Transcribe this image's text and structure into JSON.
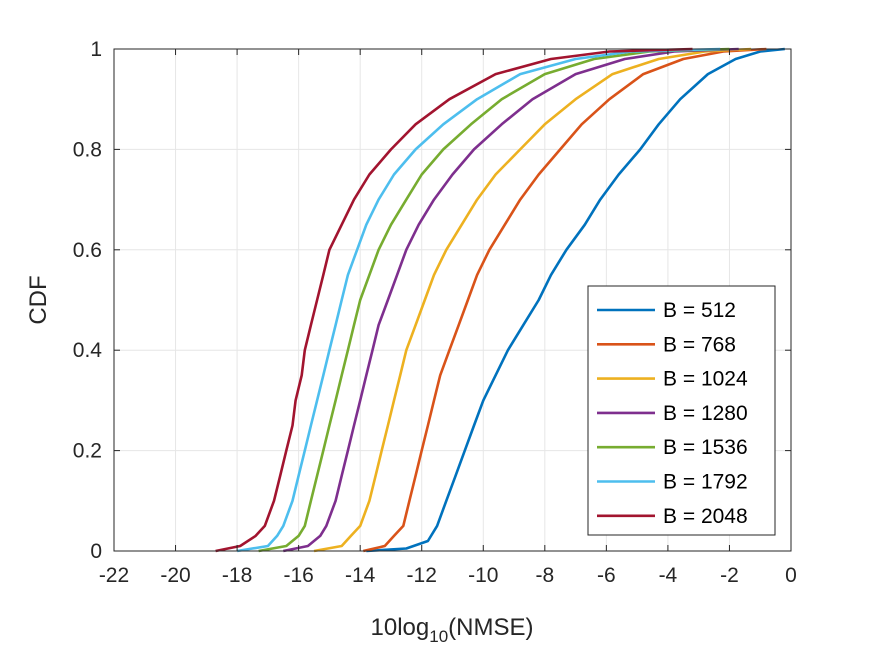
{
  "chart_data": {
    "type": "line",
    "title": "",
    "xlabel": {
      "prefix": "10log",
      "sub": "10",
      "suffix": "(NMSE)"
    },
    "ylabel": "CDF",
    "xlim": [
      -22,
      0
    ],
    "ylim": [
      0,
      1
    ],
    "xticks": [
      -22,
      -20,
      -18,
      -16,
      -14,
      -12,
      -10,
      -8,
      -6,
      -4,
      -2,
      0
    ],
    "yticks": [
      0,
      0.2,
      0.4,
      0.6,
      0.8,
      1
    ],
    "grid": true,
    "legend_position": "bottom-right",
    "series": [
      {
        "name": "B = 512",
        "color": "#0072BD",
        "points": [
          [
            -13.8,
            0
          ],
          [
            -12.5,
            0.005
          ],
          [
            -11.8,
            0.02
          ],
          [
            -11.5,
            0.05
          ],
          [
            -11.2,
            0.1
          ],
          [
            -10.9,
            0.15
          ],
          [
            -10.6,
            0.2
          ],
          [
            -10.3,
            0.25
          ],
          [
            -10,
            0.3
          ],
          [
            -9.6,
            0.35
          ],
          [
            -9.2,
            0.4
          ],
          [
            -8.7,
            0.45
          ],
          [
            -8.2,
            0.5
          ],
          [
            -7.8,
            0.55
          ],
          [
            -7.3,
            0.6
          ],
          [
            -6.7,
            0.65
          ],
          [
            -6.2,
            0.7
          ],
          [
            -5.6,
            0.75
          ],
          [
            -4.9,
            0.8
          ],
          [
            -4.3,
            0.85
          ],
          [
            -3.6,
            0.9
          ],
          [
            -2.7,
            0.95
          ],
          [
            -1.8,
            0.98
          ],
          [
            -1,
            0.995
          ],
          [
            -0.2,
            1
          ]
        ]
      },
      {
        "name": "B = 768",
        "color": "#D95319",
        "points": [
          [
            -13.9,
            0
          ],
          [
            -13.2,
            0.01
          ],
          [
            -12.9,
            0.03
          ],
          [
            -12.6,
            0.05
          ],
          [
            -12.4,
            0.1
          ],
          [
            -12.2,
            0.15
          ],
          [
            -12,
            0.2
          ],
          [
            -11.8,
            0.25
          ],
          [
            -11.6,
            0.3
          ],
          [
            -11.4,
            0.35
          ],
          [
            -11.1,
            0.4
          ],
          [
            -10.8,
            0.45
          ],
          [
            -10.5,
            0.5
          ],
          [
            -10.2,
            0.55
          ],
          [
            -9.8,
            0.6
          ],
          [
            -9.3,
            0.65
          ],
          [
            -8.8,
            0.7
          ],
          [
            -8.2,
            0.75
          ],
          [
            -7.5,
            0.8
          ],
          [
            -6.8,
            0.85
          ],
          [
            -5.9,
            0.9
          ],
          [
            -4.8,
            0.95
          ],
          [
            -3.5,
            0.98
          ],
          [
            -2.2,
            0.995
          ],
          [
            -0.8,
            1
          ]
        ]
      },
      {
        "name": "B = 1024",
        "color": "#EDB120",
        "points": [
          [
            -15.5,
            0
          ],
          [
            -14.6,
            0.01
          ],
          [
            -14.3,
            0.03
          ],
          [
            -14,
            0.05
          ],
          [
            -13.7,
            0.1
          ],
          [
            -13.5,
            0.15
          ],
          [
            -13.3,
            0.2
          ],
          [
            -13.1,
            0.25
          ],
          [
            -12.9,
            0.3
          ],
          [
            -12.7,
            0.35
          ],
          [
            -12.5,
            0.4
          ],
          [
            -12.2,
            0.45
          ],
          [
            -11.9,
            0.5
          ],
          [
            -11.6,
            0.55
          ],
          [
            -11.2,
            0.6
          ],
          [
            -10.7,
            0.65
          ],
          [
            -10.2,
            0.7
          ],
          [
            -9.6,
            0.75
          ],
          [
            -8.8,
            0.8
          ],
          [
            -8,
            0.85
          ],
          [
            -7,
            0.9
          ],
          [
            -5.8,
            0.95
          ],
          [
            -4.3,
            0.98
          ],
          [
            -2.8,
            0.995
          ],
          [
            -1.3,
            1
          ]
        ]
      },
      {
        "name": "B = 1280",
        "color": "#7E2F8E",
        "points": [
          [
            -16.5,
            0
          ],
          [
            -15.7,
            0.01
          ],
          [
            -15.3,
            0.03
          ],
          [
            -15.1,
            0.05
          ],
          [
            -14.8,
            0.1
          ],
          [
            -14.6,
            0.15
          ],
          [
            -14.4,
            0.2
          ],
          [
            -14.2,
            0.25
          ],
          [
            -14,
            0.3
          ],
          [
            -13.8,
            0.35
          ],
          [
            -13.6,
            0.4
          ],
          [
            -13.4,
            0.45
          ],
          [
            -13.1,
            0.5
          ],
          [
            -12.8,
            0.55
          ],
          [
            -12.5,
            0.6
          ],
          [
            -12.1,
            0.65
          ],
          [
            -11.6,
            0.7
          ],
          [
            -11,
            0.75
          ],
          [
            -10.3,
            0.8
          ],
          [
            -9.4,
            0.85
          ],
          [
            -8.4,
            0.9
          ],
          [
            -7,
            0.95
          ],
          [
            -5.4,
            0.98
          ],
          [
            -3.8,
            0.995
          ],
          [
            -1.7,
            1
          ]
        ]
      },
      {
        "name": "B = 1536",
        "color": "#77AC30",
        "points": [
          [
            -17.3,
            0
          ],
          [
            -16.4,
            0.01
          ],
          [
            -16,
            0.03
          ],
          [
            -15.8,
            0.05
          ],
          [
            -15.6,
            0.1
          ],
          [
            -15.4,
            0.15
          ],
          [
            -15.2,
            0.2
          ],
          [
            -15,
            0.25
          ],
          [
            -14.8,
            0.3
          ],
          [
            -14.6,
            0.35
          ],
          [
            -14.4,
            0.4
          ],
          [
            -14.2,
            0.45
          ],
          [
            -14,
            0.5
          ],
          [
            -13.7,
            0.55
          ],
          [
            -13.4,
            0.6
          ],
          [
            -13,
            0.65
          ],
          [
            -12.5,
            0.7
          ],
          [
            -12,
            0.75
          ],
          [
            -11.3,
            0.8
          ],
          [
            -10.4,
            0.85
          ],
          [
            -9.4,
            0.9
          ],
          [
            -8,
            0.95
          ],
          [
            -6.4,
            0.98
          ],
          [
            -4.6,
            0.995
          ],
          [
            -2,
            1
          ]
        ]
      },
      {
        "name": "B = 1792",
        "color": "#4DBEEE",
        "points": [
          [
            -18,
            0
          ],
          [
            -17,
            0.01
          ],
          [
            -16.7,
            0.03
          ],
          [
            -16.5,
            0.05
          ],
          [
            -16.2,
            0.1
          ],
          [
            -16,
            0.15
          ],
          [
            -15.8,
            0.2
          ],
          [
            -15.6,
            0.25
          ],
          [
            -15.4,
            0.3
          ],
          [
            -15.2,
            0.35
          ],
          [
            -15,
            0.4
          ],
          [
            -14.8,
            0.45
          ],
          [
            -14.6,
            0.5
          ],
          [
            -14.4,
            0.55
          ],
          [
            -14.1,
            0.6
          ],
          [
            -13.8,
            0.65
          ],
          [
            -13.4,
            0.7
          ],
          [
            -12.9,
            0.75
          ],
          [
            -12.2,
            0.8
          ],
          [
            -11.3,
            0.85
          ],
          [
            -10.2,
            0.9
          ],
          [
            -8.8,
            0.95
          ],
          [
            -7,
            0.98
          ],
          [
            -5.2,
            0.995
          ],
          [
            -2.3,
            1
          ]
        ]
      },
      {
        "name": "B = 2048",
        "color": "#A2142F",
        "points": [
          [
            -18.7,
            0
          ],
          [
            -17.9,
            0.01
          ],
          [
            -17.4,
            0.03
          ],
          [
            -17.1,
            0.05
          ],
          [
            -16.8,
            0.1
          ],
          [
            -16.6,
            0.15
          ],
          [
            -16.4,
            0.2
          ],
          [
            -16.2,
            0.25
          ],
          [
            -16.1,
            0.3
          ],
          [
            -15.9,
            0.35
          ],
          [
            -15.8,
            0.4
          ],
          [
            -15.6,
            0.45
          ],
          [
            -15.4,
            0.5
          ],
          [
            -15.2,
            0.55
          ],
          [
            -15,
            0.6
          ],
          [
            -14.6,
            0.65
          ],
          [
            -14.2,
            0.7
          ],
          [
            -13.7,
            0.75
          ],
          [
            -13,
            0.8
          ],
          [
            -12.2,
            0.85
          ],
          [
            -11.1,
            0.9
          ],
          [
            -9.6,
            0.95
          ],
          [
            -7.8,
            0.98
          ],
          [
            -5.9,
            0.995
          ],
          [
            -3.2,
            1
          ]
        ]
      }
    ]
  }
}
